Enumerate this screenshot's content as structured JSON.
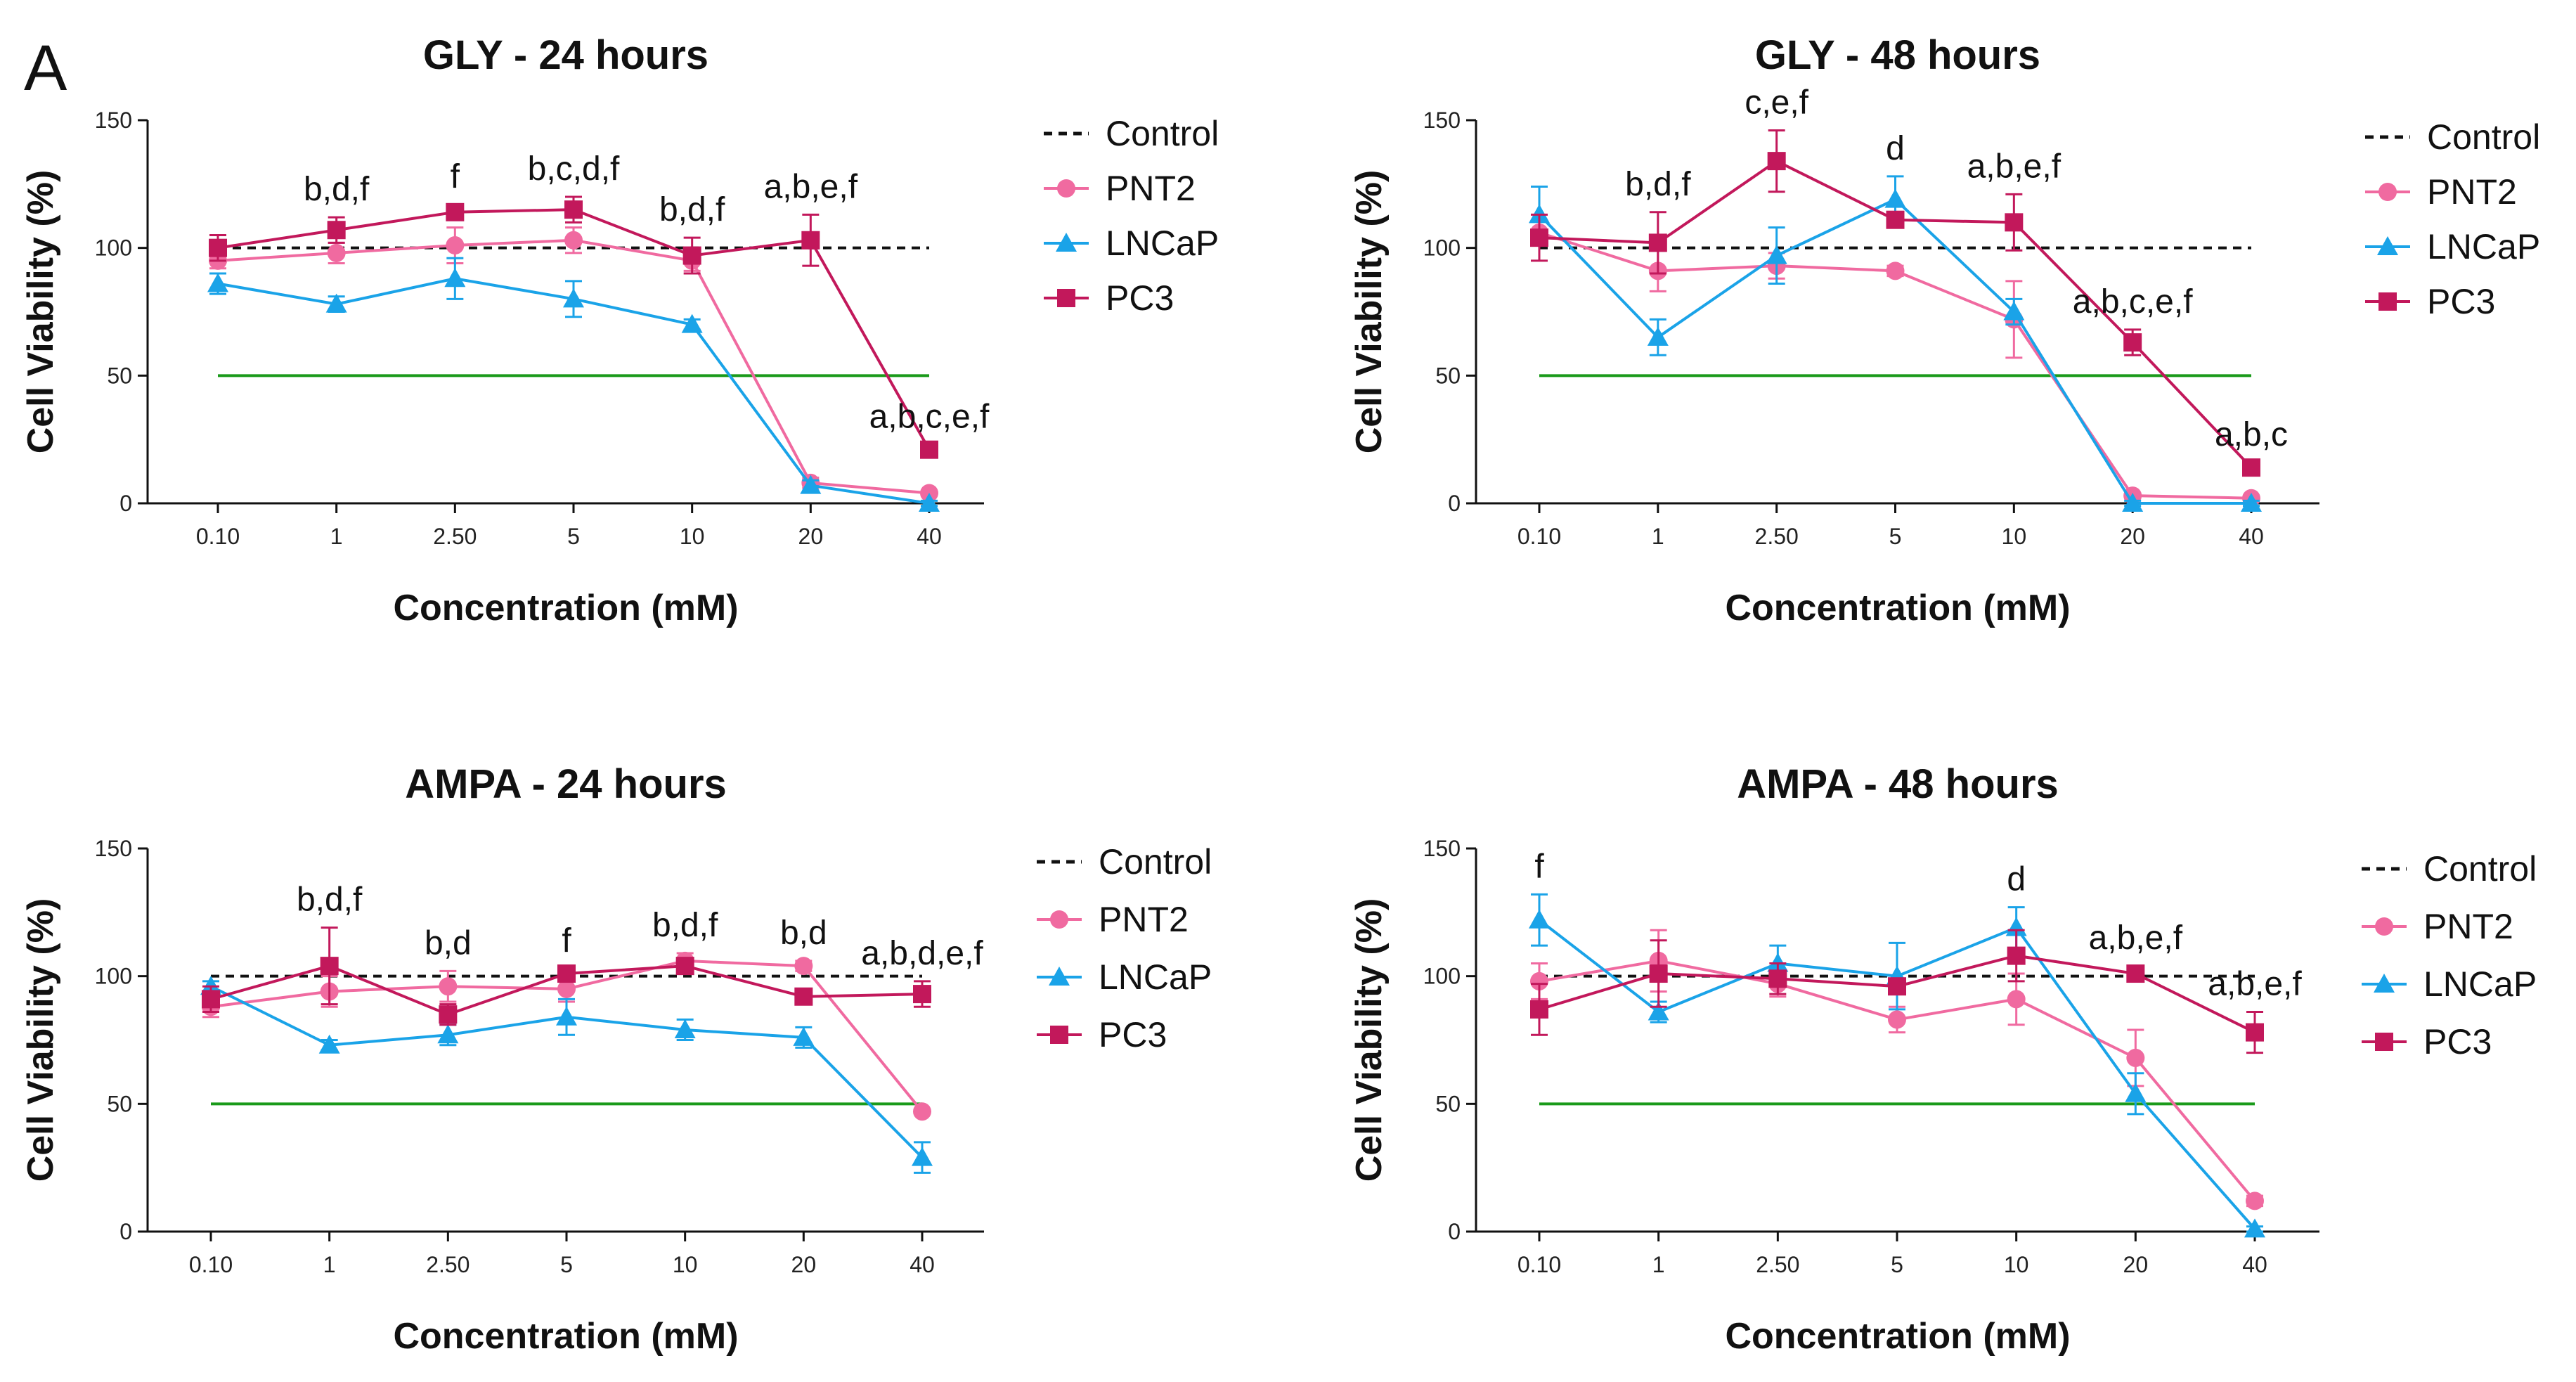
{
  "panel_label": "A",
  "colors": {
    "control": "#111111",
    "PNT2": "#f06aa0",
    "LNCaP": "#1aa3e8",
    "PC3": "#c2185b",
    "threshold": "#1a9a1a"
  },
  "chart_data": [
    {
      "type": "line",
      "title": "GLY - 24 hours",
      "xlabel": "Concentration (mM)",
      "ylabel": "Cell Viability (%)",
      "categories": [
        "0.10",
        "1",
        "2.50",
        "5",
        "10",
        "20",
        "40"
      ],
      "ylim": [
        0,
        150
      ],
      "yticks": [
        "0",
        "50",
        "100",
        "150"
      ],
      "control_value": 100,
      "threshold_value": 50,
      "legend": [
        "Control",
        "PNT2",
        "LNCaP",
        "PC3"
      ],
      "series": [
        {
          "name": "PNT2",
          "values": [
            95,
            98,
            101,
            103,
            95,
            8,
            4
          ],
          "errors": [
            3,
            4,
            7,
            5,
            4,
            2,
            1
          ]
        },
        {
          "name": "LNCaP",
          "values": [
            86,
            78,
            88,
            80,
            70,
            7,
            0
          ],
          "errors": [
            4,
            3,
            8,
            7,
            2,
            2,
            1
          ]
        },
        {
          "name": "PC3",
          "values": [
            100,
            107,
            114,
            115,
            97,
            103,
            21
          ],
          "errors": [
            5,
            5,
            3,
            5,
            7,
            10,
            2
          ]
        }
      ],
      "annotations": [
        {
          "index": 1,
          "text": "b,d,f"
        },
        {
          "index": 2,
          "text": "f"
        },
        {
          "index": 3,
          "text": "b,c,d,f"
        },
        {
          "index": 4,
          "text": "b,d,f"
        },
        {
          "index": 5,
          "text": "a,b,e,f"
        },
        {
          "index": 6,
          "text": "a,b,c,e,f"
        }
      ]
    },
    {
      "type": "line",
      "title": "GLY - 48 hours",
      "xlabel": "Concentration (mM)",
      "ylabel": "Cell Viability (%)",
      "categories": [
        "0.10",
        "1",
        "2.50",
        "5",
        "10",
        "20",
        "40"
      ],
      "ylim": [
        0,
        150
      ],
      "yticks": [
        "0",
        "50",
        "100",
        "150"
      ],
      "control_value": 100,
      "threshold_value": 50,
      "legend": [
        "Control",
        "PNT2",
        "LNCaP",
        "PC3"
      ],
      "series": [
        {
          "name": "PNT2",
          "values": [
            106,
            91,
            93,
            91,
            72,
            3,
            2
          ],
          "errors": [
            5,
            8,
            5,
            2,
            15,
            1,
            1
          ]
        },
        {
          "name": "LNCaP",
          "values": [
            113,
            65,
            97,
            119,
            75,
            0,
            0
          ],
          "errors": [
            11,
            7,
            11,
            9,
            5,
            1,
            1
          ]
        },
        {
          "name": "PC3",
          "values": [
            104,
            102,
            134,
            111,
            110,
            63,
            14
          ],
          "errors": [
            9,
            12,
            12,
            3,
            11,
            5,
            2
          ]
        }
      ],
      "annotations": [
        {
          "index": 1,
          "text": "b,d,f"
        },
        {
          "index": 2,
          "text": "c,e,f"
        },
        {
          "index": 3,
          "text": "d"
        },
        {
          "index": 4,
          "text": "a,b,e,f"
        },
        {
          "index": 5,
          "text": "a,b,c,e,f"
        },
        {
          "index": 6,
          "text": "a,b,c"
        }
      ]
    },
    {
      "type": "line",
      "title": "AMPA - 24 hours",
      "xlabel": "Concentration (mM)",
      "ylabel": "Cell Viability (%)",
      "categories": [
        "0.10",
        "1",
        "2.50",
        "5",
        "10",
        "20",
        "40"
      ],
      "ylim": [
        0,
        150
      ],
      "yticks": [
        "0",
        "50",
        "100",
        "150"
      ],
      "control_value": 100,
      "threshold_value": 50,
      "legend": [
        "Control",
        "PNT2",
        "LNCaP",
        "PC3"
      ],
      "series": [
        {
          "name": "PNT2",
          "values": [
            88,
            94,
            96,
            95,
            106,
            104,
            47
          ],
          "errors": [
            4,
            6,
            6,
            5,
            3,
            2,
            1
          ]
        },
        {
          "name": "LNCaP",
          "values": [
            96,
            73,
            77,
            84,
            79,
            76,
            29
          ],
          "errors": [
            2,
            2,
            4,
            7,
            4,
            4,
            6
          ]
        },
        {
          "name": "PC3",
          "values": [
            91,
            104,
            85,
            101,
            104,
            92,
            93
          ],
          "errors": [
            5,
            15,
            4,
            2,
            3,
            3,
            5
          ]
        }
      ],
      "annotations": [
        {
          "index": 1,
          "text": "b,d,f"
        },
        {
          "index": 2,
          "text": "b,d"
        },
        {
          "index": 3,
          "text": "f"
        },
        {
          "index": 4,
          "text": "b,d,f"
        },
        {
          "index": 5,
          "text": "b,d"
        },
        {
          "index": 6,
          "text": "a,b,d,e,f"
        }
      ]
    },
    {
      "type": "line",
      "title": "AMPA - 48 hours",
      "xlabel": "Concentration (mM)",
      "ylabel": "Cell Viability (%)",
      "categories": [
        "0.10",
        "1",
        "2.50",
        "5",
        "10",
        "20",
        "40"
      ],
      "ylim": [
        0,
        150
      ],
      "yticks": [
        "0",
        "50",
        "100",
        "150"
      ],
      "control_value": 100,
      "threshold_value": 50,
      "legend": [
        "Control",
        "PNT2",
        "LNCaP",
        "PC3"
      ],
      "series": [
        {
          "name": "PNT2",
          "values": [
            98,
            106,
            97,
            83,
            91,
            68,
            12
          ],
          "errors": [
            7,
            12,
            5,
            5,
            10,
            11,
            2
          ]
        },
        {
          "name": "LNCaP",
          "values": [
            122,
            86,
            105,
            100,
            119,
            54,
            1
          ],
          "errors": [
            10,
            4,
            7,
            13,
            8,
            8,
            1
          ]
        },
        {
          "name": "PC3",
          "values": [
            87,
            101,
            99,
            96,
            108,
            101,
            78
          ],
          "errors": [
            10,
            13,
            6,
            3,
            10,
            3,
            8
          ]
        }
      ],
      "annotations": [
        {
          "index": 0,
          "text": "f"
        },
        {
          "index": 4,
          "text": "d"
        },
        {
          "index": 5,
          "text": "a,b,e,f"
        },
        {
          "index": 6,
          "text": "a,b,e,f"
        }
      ]
    }
  ]
}
